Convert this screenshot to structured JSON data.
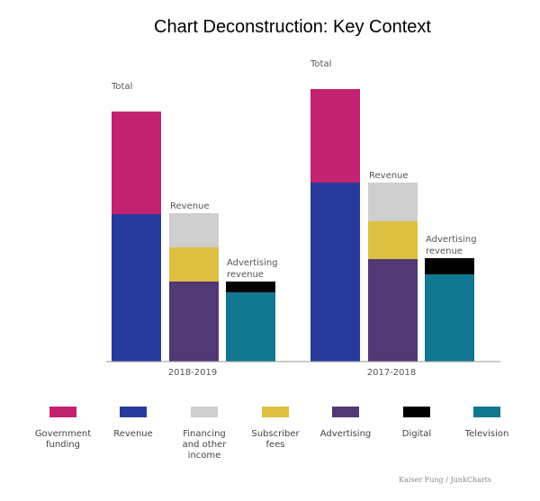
{
  "chart_data": {
    "type": "bar",
    "title": "Chart Deconstruction: Key Context",
    "xlabel": "",
    "ylabel": "",
    "ylim": [
      0,
      303
    ],
    "grid": false,
    "legend_position": "bottom",
    "groups": [
      {
        "label": "2018-2019",
        "bars": [
          {
            "label": "Total",
            "segments": [
              {
                "category": "Revenue",
                "value": 164
              },
              {
                "category": "Government funding",
                "value": 114
              }
            ]
          },
          {
            "label": "Revenue",
            "segments": [
              {
                "category": "Advertising",
                "value": 89
              },
              {
                "category": "Subscriber fees",
                "value": 38
              },
              {
                "category": "Financing and other income",
                "value": 38
              }
            ]
          },
          {
            "label": "Advertising revenue",
            "segments": [
              {
                "category": "Television",
                "value": 77
              },
              {
                "category": "Digital",
                "value": 12
              }
            ]
          }
        ]
      },
      {
        "label": "2017-2018",
        "bars": [
          {
            "label": "Total",
            "segments": [
              {
                "category": "Revenue",
                "value": 199
              },
              {
                "category": "Government funding",
                "value": 104
              }
            ]
          },
          {
            "label": "Revenue",
            "segments": [
              {
                "category": "Advertising",
                "value": 114
              },
              {
                "category": "Subscriber fees",
                "value": 42
              },
              {
                "category": "Financing and other income",
                "value": 43
              }
            ]
          },
          {
            "label": "Advertising revenue",
            "segments": [
              {
                "category": "Television",
                "value": 97
              },
              {
                "category": "Digital",
                "value": 18
              }
            ]
          }
        ]
      }
    ],
    "legend": [
      {
        "key": "Government funding",
        "label": "Government funding",
        "color": "#c2226f"
      },
      {
        "key": "Revenue",
        "label": "Revenue",
        "color": "#283b9b"
      },
      {
        "key": "Financing and other income",
        "label": "Financing and other income",
        "color": "#cfcfcf"
      },
      {
        "key": "Subscriber fees",
        "label": "Subscriber fees",
        "color": "#ddc03f"
      },
      {
        "key": "Advertising",
        "label": "Advertising",
        "color": "#523874"
      },
      {
        "key": "Digital",
        "label": "Digital",
        "color": "#000000"
      },
      {
        "key": "Television",
        "label": "Television",
        "color": "#127791"
      }
    ]
  },
  "credit": "Kaiser Fung  /  JunkCharts"
}
